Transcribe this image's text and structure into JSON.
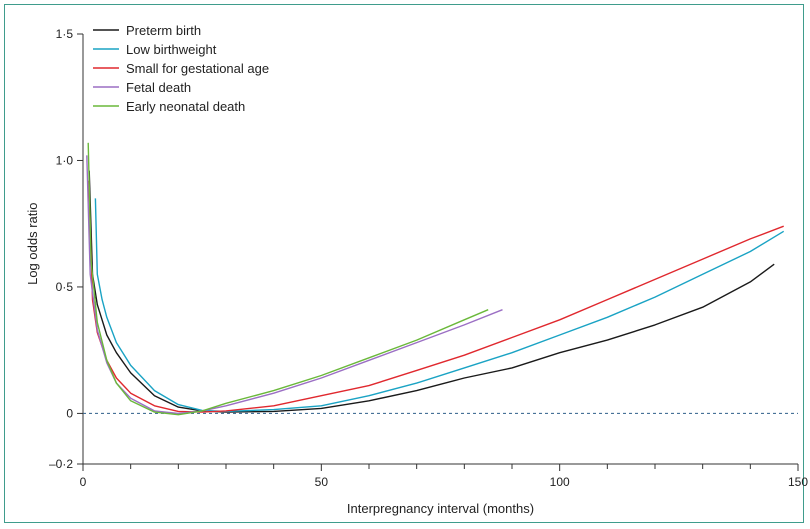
{
  "chart_data": {
    "type": "line",
    "xlabel": "Interpregnancy interval (months)",
    "ylabel": "Log odds ratio",
    "xlim": [
      0,
      150
    ],
    "ylim": [
      -0.2,
      1.5
    ],
    "x_ticks": [
      0,
      50,
      100,
      150
    ],
    "x_tick_labels": [
      "0",
      "50",
      "100",
      "150"
    ],
    "y_ticks": [
      -0.2,
      0,
      0.5,
      1.0,
      1.5
    ],
    "y_tick_labels": [
      "–0·2",
      "0",
      "0·5",
      "1·0",
      "1·5"
    ],
    "reference_line": {
      "y": 0,
      "style": "dashed",
      "color": "#2f5f8a"
    },
    "legend_position": "top-left",
    "series": [
      {
        "name": "Preterm birth",
        "color": "#1a1a1a",
        "points": [
          [
            1.3,
            0.96
          ],
          [
            2,
            0.55
          ],
          [
            3,
            0.43
          ],
          [
            5,
            0.31
          ],
          [
            7,
            0.24
          ],
          [
            10,
            0.16
          ],
          [
            15,
            0.07
          ],
          [
            20,
            0.025
          ],
          [
            25,
            0.01
          ],
          [
            30,
            0.005
          ],
          [
            40,
            0.008
          ],
          [
            50,
            0.02
          ],
          [
            60,
            0.05
          ],
          [
            70,
            0.09
          ],
          [
            80,
            0.14
          ],
          [
            90,
            0.18
          ],
          [
            100,
            0.24
          ],
          [
            110,
            0.29
          ],
          [
            120,
            0.35
          ],
          [
            130,
            0.42
          ],
          [
            140,
            0.52
          ],
          [
            145,
            0.59
          ]
        ]
      },
      {
        "name": "Low birthweight",
        "color": "#1aa3c4",
        "points": [
          [
            2.6,
            0.85
          ],
          [
            3,
            0.55
          ],
          [
            4,
            0.45
          ],
          [
            5,
            0.38
          ],
          [
            7,
            0.28
          ],
          [
            10,
            0.19
          ],
          [
            15,
            0.09
          ],
          [
            20,
            0.035
          ],
          [
            25,
            0.012
          ],
          [
            30,
            0.008
          ],
          [
            40,
            0.015
          ],
          [
            50,
            0.03
          ],
          [
            60,
            0.07
          ],
          [
            70,
            0.12
          ],
          [
            80,
            0.18
          ],
          [
            90,
            0.24
          ],
          [
            100,
            0.31
          ],
          [
            110,
            0.38
          ],
          [
            120,
            0.46
          ],
          [
            130,
            0.55
          ],
          [
            140,
            0.64
          ],
          [
            147,
            0.72
          ]
        ]
      },
      {
        "name": "Small for gestational age",
        "color": "#e0282e",
        "points": [
          [
            1.2,
            0.92
          ],
          [
            2,
            0.45
          ],
          [
            3,
            0.32
          ],
          [
            5,
            0.21
          ],
          [
            7,
            0.14
          ],
          [
            10,
            0.08
          ],
          [
            15,
            0.03
          ],
          [
            20,
            0.008
          ],
          [
            25,
            0.005
          ],
          [
            30,
            0.01
          ],
          [
            40,
            0.03
          ],
          [
            50,
            0.07
          ],
          [
            60,
            0.11
          ],
          [
            70,
            0.17
          ],
          [
            80,
            0.23
          ],
          [
            90,
            0.3
          ],
          [
            100,
            0.37
          ],
          [
            110,
            0.45
          ],
          [
            120,
            0.53
          ],
          [
            130,
            0.61
          ],
          [
            140,
            0.69
          ],
          [
            147,
            0.74
          ]
        ]
      },
      {
        "name": "Fetal death",
        "color": "#9b6fc4",
        "points": [
          [
            0.8,
            1.02
          ],
          [
            1.5,
            0.55
          ],
          [
            3,
            0.33
          ],
          [
            5,
            0.2
          ],
          [
            7,
            0.12
          ],
          [
            10,
            0.06
          ],
          [
            15,
            0.01
          ],
          [
            20,
            0.0
          ],
          [
            25,
            0.01
          ],
          [
            30,
            0.03
          ],
          [
            40,
            0.08
          ],
          [
            50,
            0.14
          ],
          [
            60,
            0.21
          ],
          [
            70,
            0.28
          ],
          [
            80,
            0.35
          ],
          [
            88,
            0.41
          ]
        ]
      },
      {
        "name": "Early neonatal death",
        "color": "#6ab83a",
        "points": [
          [
            1.1,
            1.07
          ],
          [
            1.7,
            0.6
          ],
          [
            3,
            0.36
          ],
          [
            5,
            0.21
          ],
          [
            7,
            0.12
          ],
          [
            10,
            0.05
          ],
          [
            15,
            0.005
          ],
          [
            20,
            -0.005
          ],
          [
            25,
            0.01
          ],
          [
            30,
            0.04
          ],
          [
            40,
            0.09
          ],
          [
            50,
            0.15
          ],
          [
            60,
            0.22
          ],
          [
            70,
            0.29
          ],
          [
            80,
            0.37
          ],
          [
            85,
            0.41
          ]
        ]
      }
    ]
  }
}
